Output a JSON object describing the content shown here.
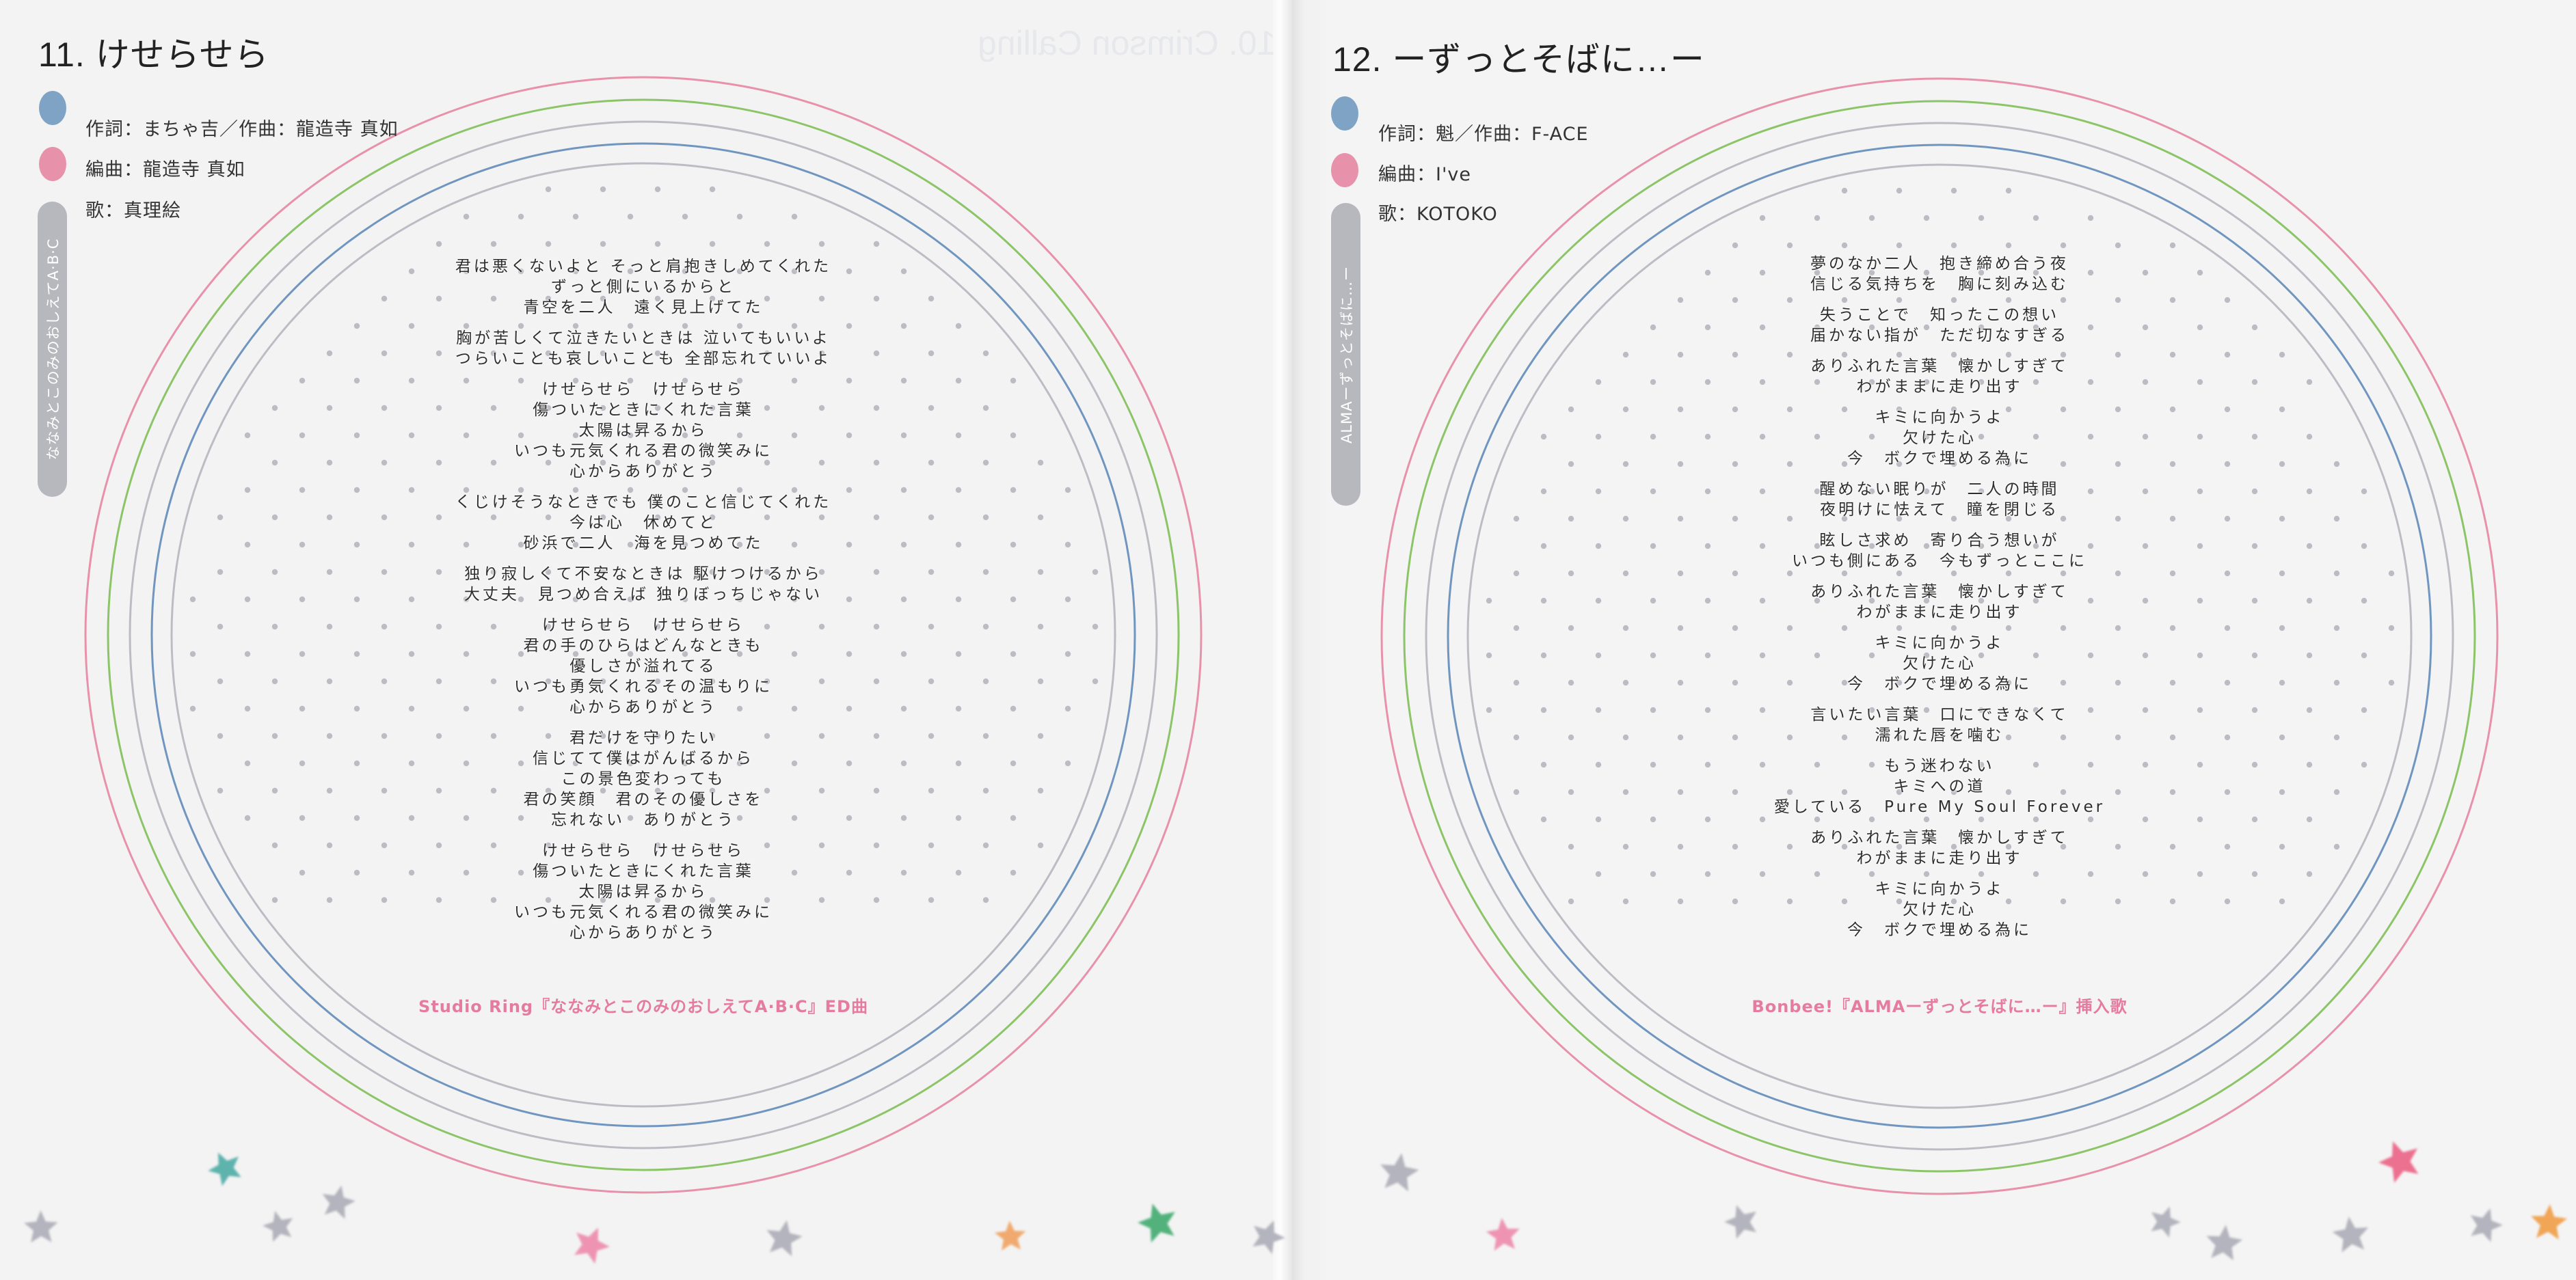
{
  "colors": {
    "ring_pink": "#e891aa",
    "ring_green": "#8cc468",
    "ring_gray": "#bdbcc4",
    "ring_blue": "#7096c0",
    "dot_gray": "#bdbcc4",
    "credit_blue": "#7fa3c4",
    "credit_pink": "#e891ab",
    "credit_green": "#8ccb6c",
    "footer_pink": "#e57c9f",
    "tab_gray": "#b7b7be"
  },
  "left_page": {
    "title": "11. けせらせら",
    "credits": [
      "作詞：まちゃ吉／作曲：龍造寺 真如",
      "編曲：龍造寺 真如",
      "歌：真理絵"
    ],
    "side_tab": "ななみとこのみのおしえてA·B·C",
    "ghost_title": "10. Crimson Calling",
    "lyrics": [
      [
        "君は悪くないよと そっと肩抱きしめてくれた",
        "ずっと側にいるからと",
        "青空を二人　遠く見上げてた"
      ],
      [
        "胸が苦しくて泣きたいときは 泣いてもいいよ",
        "つらいことも哀しいことも 全部忘れていいよ"
      ],
      [
        "けせらせら　けせらせら",
        "傷ついたときにくれた言葉",
        "太陽は昇るから",
        "いつも元気くれる君の微笑みに",
        "心からありがとう"
      ],
      [
        "くじけそうなときでも 僕のこと信じてくれた",
        "今は心　休めてと",
        "砂浜で二人　海を見つめてた"
      ],
      [
        "独り寂しくて不安なときは 駆けつけるから",
        "大丈夫　見つめ合えば 独りぼっちじゃない"
      ],
      [
        "けせらせら　けせらせら",
        "君の手のひらはどんなときも",
        "優しさが溢れてる",
        "いつも勇気くれるその温もりに",
        "心からありがとう"
      ],
      [
        "君だけを守りたい",
        "信じてて僕はがんばるから",
        "この景色変わっても",
        "君の笑顔　君のその優しさを",
        "忘れない　ありがとう"
      ],
      [
        "けせらせら　けせらせら",
        "傷ついたときにくれた言葉",
        "太陽は昇るから",
        "いつも元気くれる君の微笑みに",
        "心からありがとう"
      ]
    ],
    "footer": "Studio Ring『ななみとこのみのおしえてA·B·C』ED曲"
  },
  "right_page": {
    "title": "12. ーずっとそばに…ー",
    "credits": [
      "作詞：魁／作曲：F-ACE",
      "編曲：I've",
      "歌：KOTOKO"
    ],
    "side_tab": "ALMAーずっとそばに…ー",
    "lyrics": [
      [
        "夢のなか二人　抱き締め合う夜",
        "信じる気持ちを　胸に刻み込む"
      ],
      [
        "失うことで　知ったこの想い",
        "届かない指が　ただ切なすぎる"
      ],
      [
        "ありふれた言葉　懐かしすぎて",
        "わがままに走り出す"
      ],
      [
        "キミに向かうよ",
        "欠けた心",
        "今　ボクで埋める為に"
      ],
      [
        "醒めない眠りが　二人の時間",
        "夜明けに怯えて　瞳を閉じる"
      ],
      [
        "眩しさ求め　寄り合う想いが",
        "いつも側にある　今もずっとここに"
      ],
      [
        "ありふれた言葉　懐かしすぎて",
        "わがままに走り出す"
      ],
      [
        "キミに向かうよ",
        "欠けた心",
        "今　ボクで埋める為に"
      ],
      [
        "言いたい言葉　口にできなくて",
        "濡れた唇を噛む"
      ],
      [
        "もう迷わない",
        "キミへの道",
        "愛している　Pure My Soul Forever"
      ],
      [
        "ありふれた言葉　懐かしすぎて",
        "わがままに走り出す"
      ],
      [
        "キミに向かうよ",
        "欠けた心",
        "今　ボクで埋める為に"
      ]
    ],
    "footer": "Bonbee!『ALMAーずっとそばに…ー』挿入歌"
  },
  "stars": [
    {
      "icon": "star-icon",
      "color": "#5fb3ad"
    },
    {
      "icon": "star-icon",
      "color": "#b4b4be"
    },
    {
      "icon": "star-icon",
      "color": "#b4b4be"
    },
    {
      "icon": "star-icon",
      "color": "#b4b4be"
    },
    {
      "icon": "star-icon",
      "color": "#ee94b2"
    },
    {
      "icon": "star-icon",
      "color": "#b4b4be"
    },
    {
      "icon": "star-icon",
      "color": "#f0aa70"
    },
    {
      "icon": "star-icon",
      "color": "#52b27c"
    },
    {
      "icon": "star-icon",
      "color": "#b4b4be"
    },
    {
      "icon": "star-icon",
      "color": "#b4b4be"
    },
    {
      "icon": "star-icon",
      "color": "#ee94b2"
    },
    {
      "icon": "star-icon",
      "color": "#b4b4be"
    },
    {
      "icon": "star-icon",
      "color": "#b4b4be"
    },
    {
      "icon": "star-icon",
      "color": "#b4b4be"
    },
    {
      "icon": "star-icon",
      "color": "#b4b4be"
    },
    {
      "icon": "star-icon",
      "color": "#ec6f90"
    },
    {
      "icon": "star-icon",
      "color": "#b4b4be"
    },
    {
      "icon": "star-icon",
      "color": "#f0a656"
    }
  ]
}
